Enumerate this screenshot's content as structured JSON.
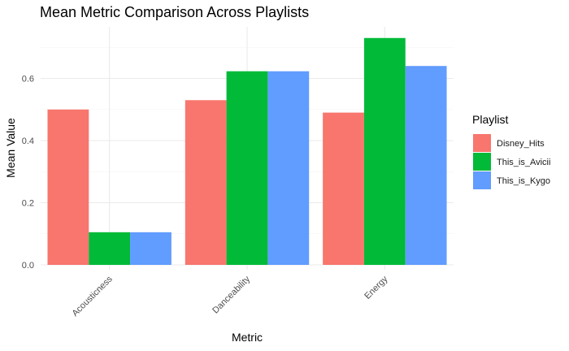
{
  "chart_data": {
    "type": "bar",
    "title": "Mean Metric Comparison Across Playlists",
    "xlabel": "Metric",
    "ylabel": "Mean Value",
    "categories": [
      "Acousticness",
      "Danceability",
      "Energy"
    ],
    "series": [
      {
        "name": "Disney_Hits",
        "color": "#F8766D",
        "values": [
          0.5,
          0.53,
          0.49
        ]
      },
      {
        "name": "This_is_Avicii",
        "color": "#00BA38",
        "values": [
          0.105,
          0.623,
          0.73
        ]
      },
      {
        "name": "This_is_Kygo",
        "color": "#619CFF",
        "values": [
          0.105,
          0.623,
          0.64
        ]
      }
    ],
    "ylim": [
      0,
      0.75
    ],
    "yticks": [
      0.0,
      0.2,
      0.4,
      0.6
    ],
    "ytick_labels": [
      "0.0",
      "0.2",
      "0.4",
      "0.6"
    ],
    "grid": true,
    "legend_title": "Playlist",
    "legend_position": "right"
  }
}
